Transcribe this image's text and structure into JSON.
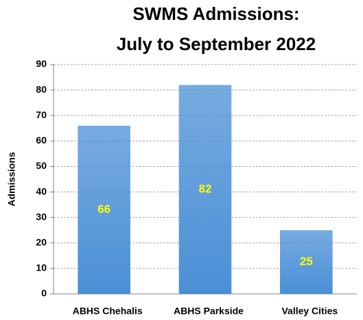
{
  "chart_data": {
    "type": "bar",
    "title": [
      "SWMS Admissions:",
      "July to September 2022"
    ],
    "y_label": "Admissions",
    "categories": [
      "ABHS Chehalis",
      "ABHS Parkside",
      "Valley Cities"
    ],
    "values": [
      66,
      82,
      25
    ],
    "color": "#4a8fd6",
    "label_color": "#ffff00",
    "ylim": [
      0,
      90
    ],
    "yticks": [
      0,
      10,
      20,
      30,
      40,
      50,
      60,
      70,
      80,
      90
    ],
    "grid": true
  }
}
